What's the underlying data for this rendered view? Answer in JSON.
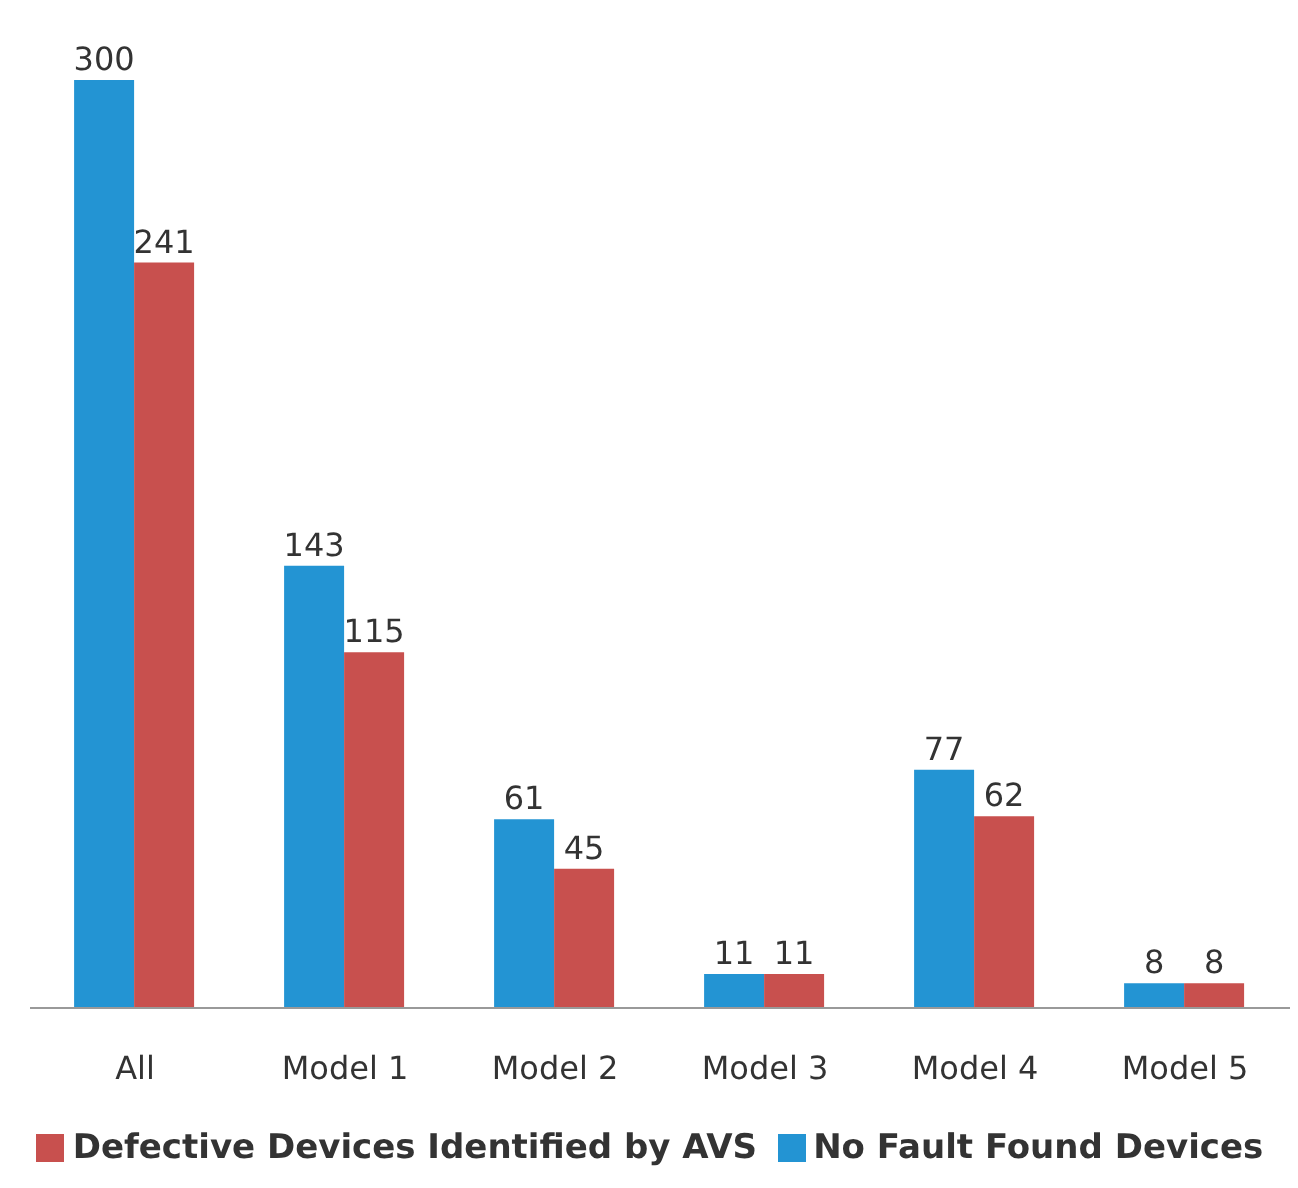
{
  "chart_data": {
    "type": "bar",
    "categories": [
      "All",
      "Model 1",
      "Model 2",
      "Model 3",
      "Model 4",
      "Model 5"
    ],
    "series": [
      {
        "name": "No Fault Found Devices",
        "color": "#2394d3",
        "values": [
          300,
          143,
          61,
          11,
          77,
          8
        ]
      },
      {
        "name": "Defective Devices Identified by AVS",
        "color": "#c8504e",
        "values": [
          241,
          115,
          45,
          11,
          62,
          8
        ]
      }
    ],
    "data_labels": true,
    "grid": false,
    "legend": "bottom",
    "tick_labels": "x"
  }
}
